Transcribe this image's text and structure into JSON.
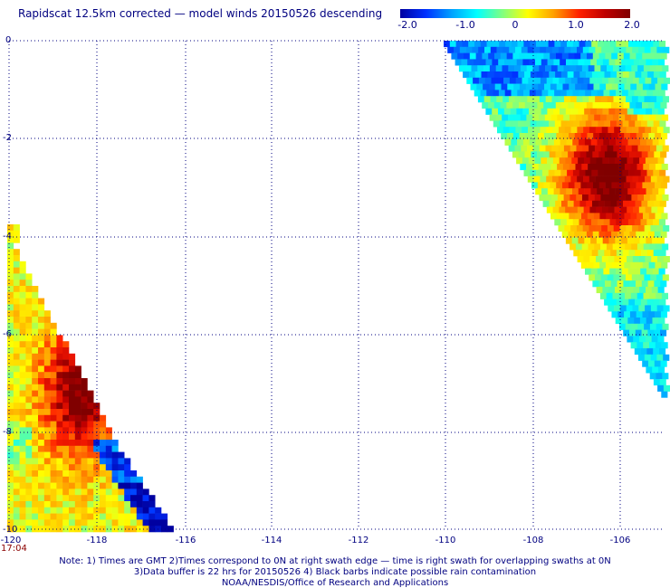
{
  "title": "Rapidscat 12.5km corrected — model winds 20150526 descending",
  "colorbar": {
    "labels": [
      "-2.0",
      "-1.0",
      "0",
      "1.0",
      "2.0"
    ],
    "range": [
      -2.0,
      2.0
    ]
  },
  "axes": {
    "x_ticks": [
      "-120",
      "-118",
      "-116",
      "-114",
      "-112",
      "-110",
      "-108",
      "-106"
    ],
    "y_ticks": [
      "0",
      "-2",
      "-4",
      "-6",
      "-8",
      "-10"
    ]
  },
  "time_label": "17:04",
  "notes": {
    "line1": "Note: 1) Times are GMT 2)Times correspond to 0N at right swath edge — time is right swath for overlapping swaths at 0N",
    "line2": "3)Data buffer is 22 hrs for 20150526 4) Black barbs indicate possible rain contamination",
    "line3": "NOAA/NESDIS/Office of Research and Applications"
  },
  "colors": {
    "text": "#000080",
    "time": "#8b0000",
    "grid": "#000080"
  }
}
